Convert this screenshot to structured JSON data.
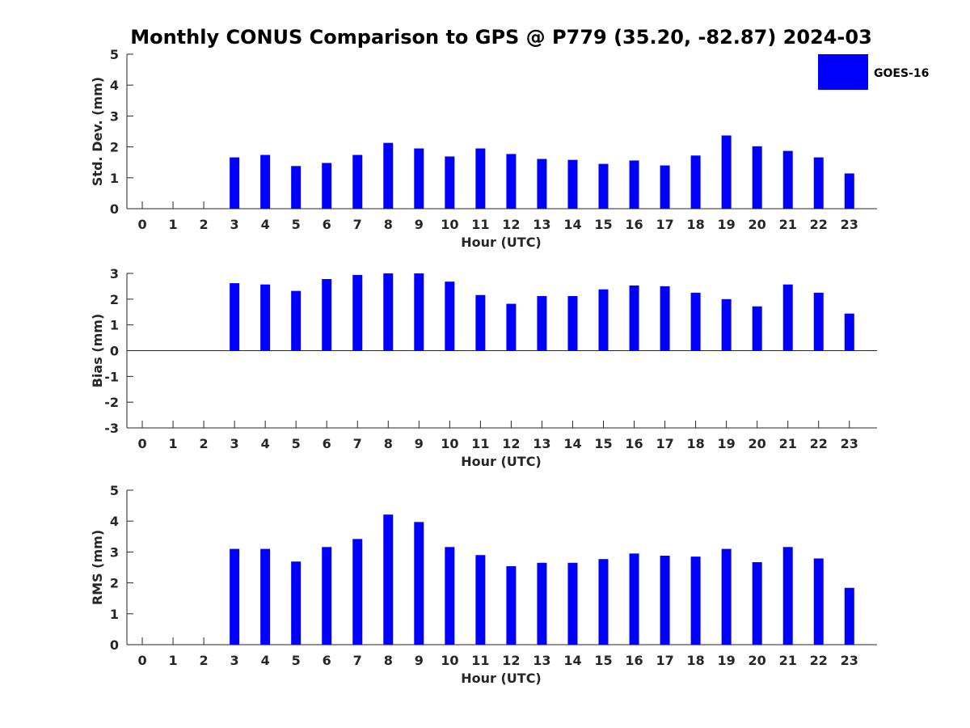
{
  "title": "Monthly CONUS Comparison to GPS @ P779 (35.20, -82.87) 2024-03",
  "legend": {
    "label": "GOES-16",
    "color": "#0000ff",
    "placement": "top-right"
  },
  "chart_data": [
    {
      "type": "bar",
      "xlabel": "Hour (UTC)",
      "ylabel": "Std. Dev. (mm)",
      "ylim": [
        0,
        5
      ],
      "yticks": [
        0,
        1,
        2,
        3,
        4,
        5
      ],
      "categories": [
        "0",
        "1",
        "2",
        "3",
        "4",
        "5",
        "6",
        "7",
        "8",
        "9",
        "10",
        "11",
        "12",
        "13",
        "14",
        "15",
        "16",
        "17",
        "18",
        "19",
        "20",
        "21",
        "22",
        "23"
      ],
      "series": [
        {
          "name": "GOES-16",
          "values": [
            null,
            null,
            null,
            1.66,
            1.74,
            1.38,
            1.48,
            1.74,
            2.13,
            1.95,
            1.69,
            1.95,
            1.77,
            1.61,
            1.58,
            1.45,
            1.56,
            1.4,
            1.72,
            2.37,
            2.02,
            1.87,
            1.66,
            1.14
          ]
        }
      ],
      "grid": false
    },
    {
      "type": "bar",
      "xlabel": "Hour (UTC)",
      "ylabel": "Bias (mm)",
      "ylim": [
        -3,
        3
      ],
      "yticks": [
        -3,
        -2,
        -1,
        0,
        1,
        2,
        3
      ],
      "categories": [
        "0",
        "1",
        "2",
        "3",
        "4",
        "5",
        "6",
        "7",
        "8",
        "9",
        "10",
        "11",
        "12",
        "13",
        "14",
        "15",
        "16",
        "17",
        "18",
        "19",
        "20",
        "21",
        "22",
        "23"
      ],
      "series": [
        {
          "name": "GOES-16",
          "values": [
            null,
            null,
            null,
            2.62,
            2.57,
            2.32,
            2.78,
            2.94,
            3.0,
            3.0,
            2.68,
            2.16,
            1.82,
            2.12,
            2.12,
            2.38,
            2.53,
            2.5,
            2.25,
            2.0,
            1.72,
            2.57,
            2.25,
            1.44
          ]
        }
      ],
      "grid": false
    },
    {
      "type": "bar",
      "xlabel": "Hour (UTC)",
      "ylabel": "RMS (mm)",
      "ylim": [
        0,
        5
      ],
      "yticks": [
        0,
        1,
        2,
        3,
        4,
        5
      ],
      "categories": [
        "0",
        "1",
        "2",
        "3",
        "4",
        "5",
        "6",
        "7",
        "8",
        "9",
        "10",
        "11",
        "12",
        "13",
        "14",
        "15",
        "16",
        "17",
        "18",
        "19",
        "20",
        "21",
        "22",
        "23"
      ],
      "series": [
        {
          "name": "GOES-16",
          "values": [
            null,
            null,
            null,
            3.1,
            3.1,
            2.69,
            3.16,
            3.42,
            4.21,
            3.97,
            3.16,
            2.9,
            2.54,
            2.65,
            2.65,
            2.77,
            2.95,
            2.88,
            2.85,
            3.1,
            2.67,
            3.16,
            2.79,
            1.84
          ]
        }
      ],
      "grid": false
    }
  ]
}
